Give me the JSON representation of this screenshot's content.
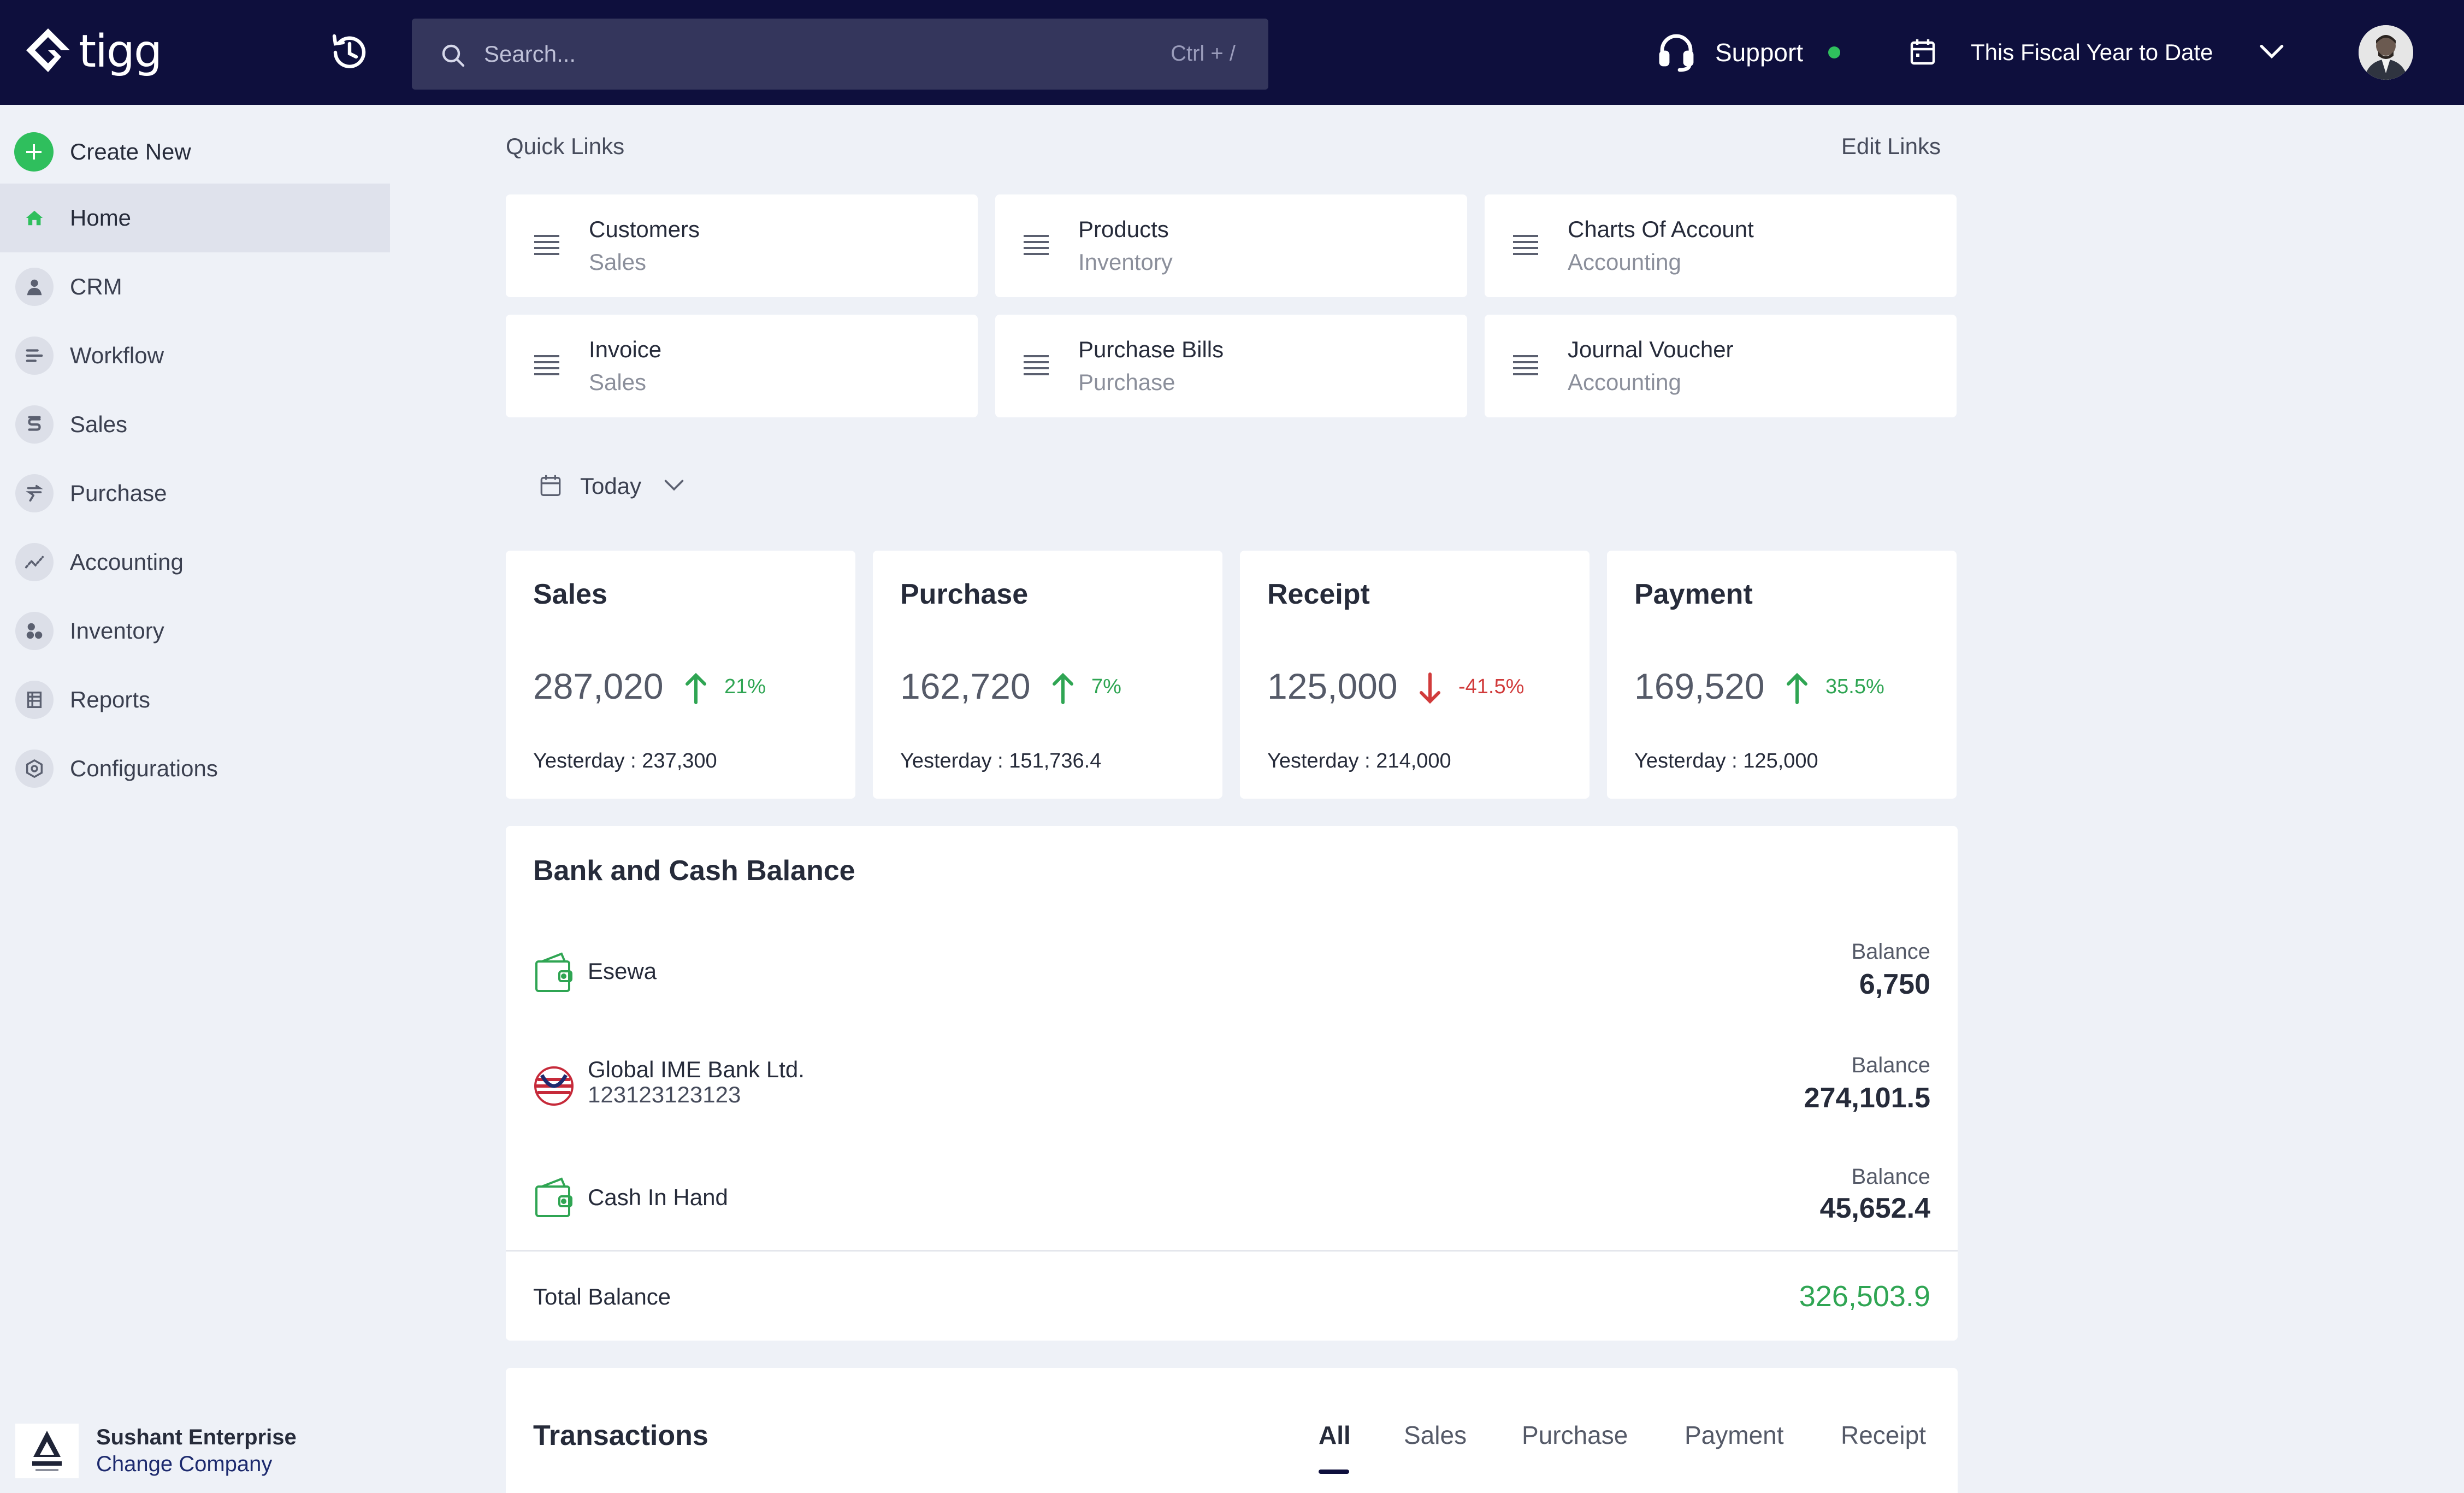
{
  "app": {
    "name": "tigg"
  },
  "search": {
    "placeholder": "Search...",
    "shortcut": "Ctrl + /"
  },
  "support": {
    "label": "Support"
  },
  "period": {
    "label": "This Fiscal Year to Date"
  },
  "sidebar": {
    "create_new": "Create New",
    "items": [
      {
        "label": "Home",
        "icon": "home-icon"
      },
      {
        "label": "CRM",
        "icon": "user-icon"
      },
      {
        "label": "Workflow",
        "icon": "workflow-icon"
      },
      {
        "label": "Sales",
        "icon": "sales-icon"
      },
      {
        "label": "Purchase",
        "icon": "purchase-icon"
      },
      {
        "label": "Accounting",
        "icon": "accounting-icon"
      },
      {
        "label": "Inventory",
        "icon": "inventory-icon"
      },
      {
        "label": "Reports",
        "icon": "reports-icon"
      },
      {
        "label": "Configurations",
        "icon": "settings-icon"
      }
    ]
  },
  "company": {
    "name": "Sushant Enterprise",
    "change": "Change Company"
  },
  "quick_links": {
    "title": "Quick Links",
    "edit": "Edit Links",
    "items": [
      {
        "name": "Customers",
        "category": "Sales"
      },
      {
        "name": "Products",
        "category": "Inventory"
      },
      {
        "name": "Charts Of Account",
        "category": "Accounting"
      },
      {
        "name": "Invoice",
        "category": "Sales"
      },
      {
        "name": "Purchase Bills",
        "category": "Purchase"
      },
      {
        "name": "Journal Voucher",
        "category": "Accounting"
      }
    ]
  },
  "date_filter": {
    "label": "Today"
  },
  "stats": [
    {
      "title": "Sales",
      "value": "287,020",
      "direction": "up",
      "change": "21%",
      "yesterday_label": "Yesterday :",
      "yesterday": "237,300"
    },
    {
      "title": "Purchase",
      "value": "162,720",
      "direction": "up",
      "change": "7%",
      "yesterday_label": "Yesterday :",
      "yesterday": "151,736.4"
    },
    {
      "title": "Receipt",
      "value": "125,000",
      "direction": "down",
      "change": "-41.5%",
      "yesterday_label": "Yesterday :",
      "yesterday": "214,000"
    },
    {
      "title": "Payment",
      "value": "169,520",
      "direction": "up",
      "change": "35.5%",
      "yesterday_label": "Yesterday :",
      "yesterday": "125,000"
    }
  ],
  "bank": {
    "title": "Bank and Cash Balance",
    "accounts": [
      {
        "name": "Esewa",
        "number": "",
        "balance_label": "Balance",
        "balance": "6,750",
        "icon": "wallet-icon"
      },
      {
        "name": "Global IME Bank Ltd.",
        "number": "123123123123",
        "balance_label": "Balance",
        "balance": "274,101.5",
        "icon": "bank-logo-icon"
      },
      {
        "name": "Cash In Hand",
        "number": "",
        "balance_label": "Balance",
        "balance": "45,652.4",
        "icon": "wallet-icon"
      }
    ],
    "total_label": "Total Balance",
    "total": "326,503.9"
  },
  "transactions": {
    "title": "Transactions",
    "tabs": [
      "All",
      "Sales",
      "Purchase",
      "Payment",
      "Receipt"
    ],
    "active_tab": "All"
  },
  "colors": {
    "topbar": "#0e0f3d",
    "accent_green": "#2fbf5d",
    "negative": "#d13b3b"
  }
}
